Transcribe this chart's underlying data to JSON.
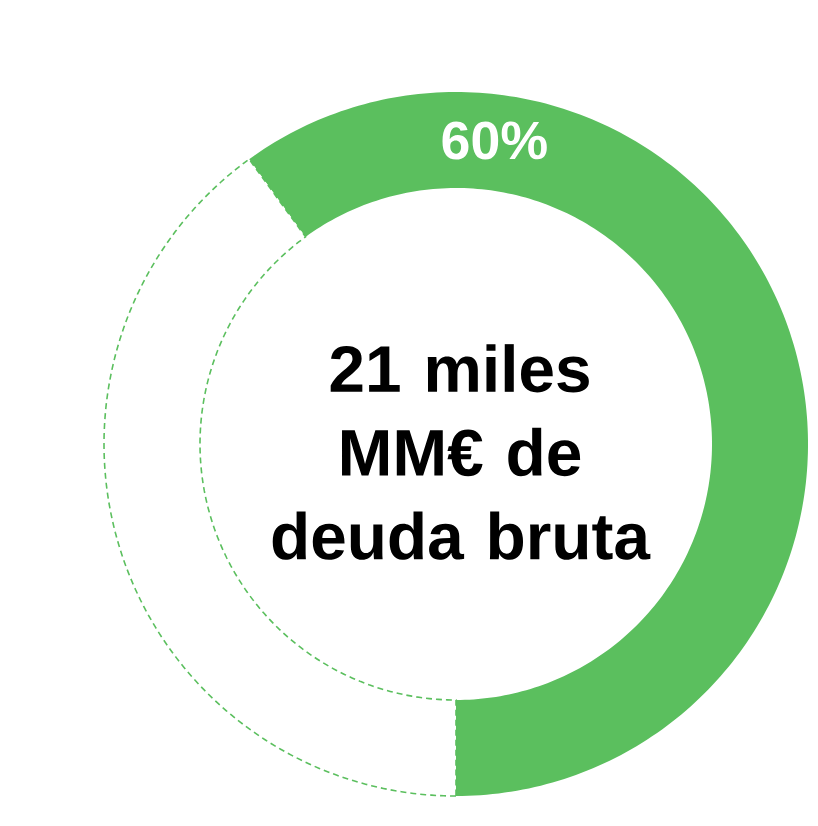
{
  "chart_data": {
    "type": "donut",
    "categories": [
      null,
      null
    ],
    "values": [
      60,
      40
    ],
    "colors": [
      "#5bbf5e",
      "#ffffff"
    ],
    "value_labels": [
      "60%",
      null
    ],
    "annotations": [
      "21 miles MM€ de deuda bruta"
    ]
  }
}
